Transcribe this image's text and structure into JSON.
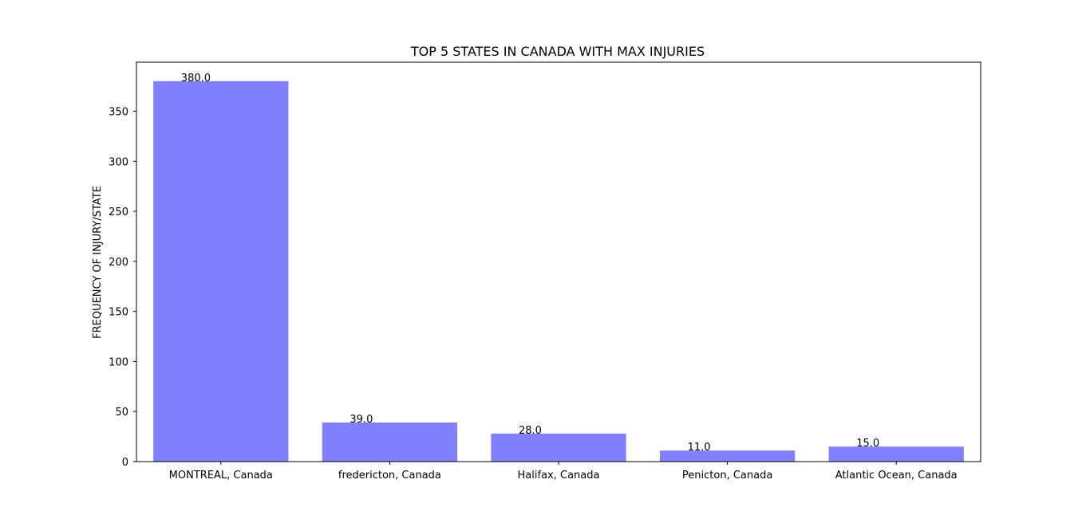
{
  "chart_data": {
    "type": "bar",
    "title": "TOP 5 STATES IN CANADA WITH MAX INJURIES",
    "xlabel": "",
    "ylabel": "FREQUENCY OF INJURY/STATE",
    "categories": [
      "MONTREAL, Canada",
      "fredericton, Canada",
      "Halifax, Canada",
      "Penicton, Canada",
      "Atlantic Ocean, Canada"
    ],
    "values": [
      380,
      39,
      28,
      11,
      15
    ],
    "data_labels": [
      "380.0",
      "39.0",
      "28.0",
      "11.0",
      "15.0"
    ],
    "yticks": [
      0,
      50,
      100,
      150,
      200,
      250,
      300,
      350
    ],
    "ylim": [
      0,
      399
    ],
    "grid": false,
    "bar_color": "#8080ff"
  }
}
